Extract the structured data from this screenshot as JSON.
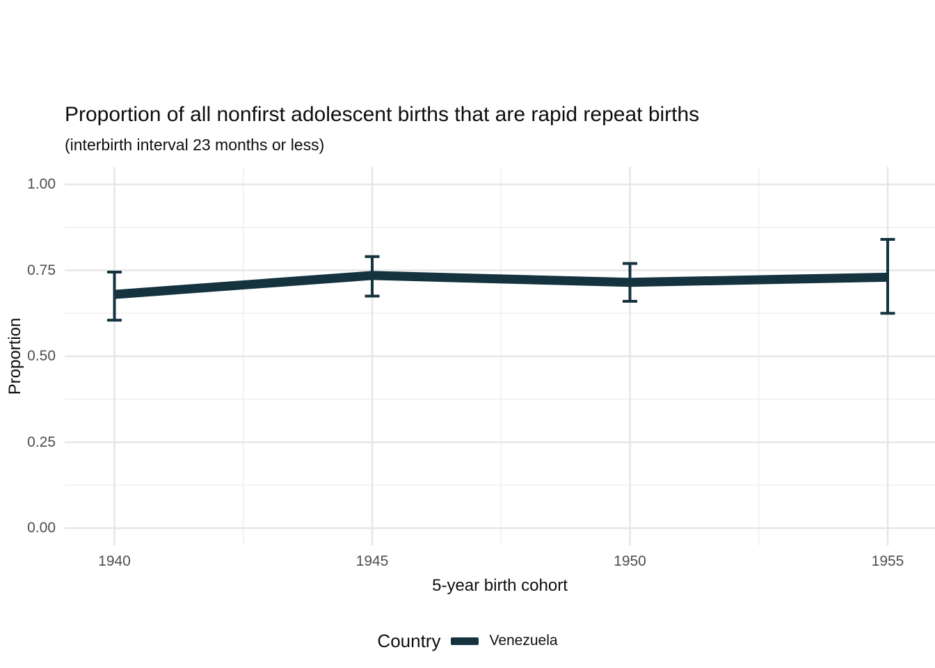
{
  "title": "Proportion of all nonfirst adolescent births that are rapid repeat births",
  "subtitle": "(interbirth interval 23 months or less)",
  "chart_data": {
    "type": "line",
    "x": [
      1940,
      1945,
      1950,
      1955
    ],
    "x_tick_labels": [
      "1940",
      "1945",
      "1950",
      "1955"
    ],
    "x_minor_ticks": [
      1942.5,
      1947.5,
      1952.5
    ],
    "y_ticks": [
      1.0,
      0.75,
      0.5,
      0.25,
      0.0
    ],
    "y_tick_labels": [
      "1.00",
      "0.75",
      "0.50",
      "0.25",
      "0.00"
    ],
    "y_minor_ticks": [
      0.875,
      0.625,
      0.375,
      0.125
    ],
    "ylim": [
      0,
      1
    ],
    "xlabel": "5-year birth cohort",
    "ylabel": "Proportion",
    "grid": "major+minor",
    "legend_position": "bottom",
    "series": [
      {
        "name": "Venezuela",
        "values": [
          0.68,
          0.735,
          0.715,
          0.73
        ],
        "ci_low": [
          0.605,
          0.675,
          0.66,
          0.625
        ],
        "ci_high": [
          0.745,
          0.79,
          0.77,
          0.84
        ],
        "color": "#14333f"
      }
    ]
  },
  "legend": {
    "title": "Country",
    "items": [
      {
        "label": "Venezuela",
        "color": "#14333f"
      }
    ]
  },
  "colors": {
    "series": "#14333f",
    "grid_major": "#e6e6e6",
    "grid_minor": "#efefef",
    "axis_text": "#4d4d4d",
    "text": "#0d0d0d",
    "background": "#ffffff"
  }
}
